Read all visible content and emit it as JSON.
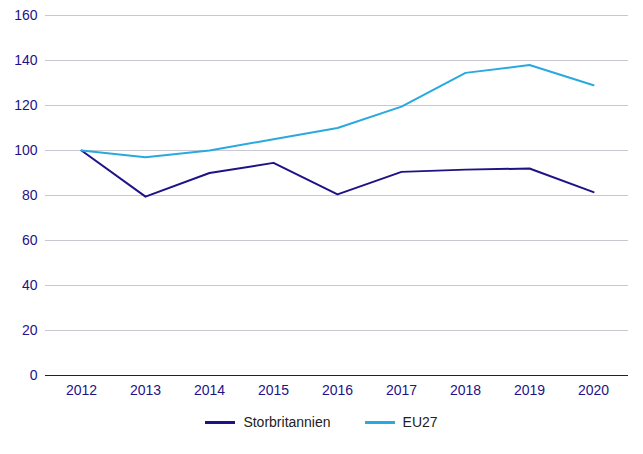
{
  "chart_data": {
    "type": "line",
    "categories": [
      "2012",
      "2013",
      "2014",
      "2015",
      "2016",
      "2017",
      "2018",
      "2019",
      "2020"
    ],
    "series": [
      {
        "name": "Storbritannien",
        "color": "#1e1287",
        "values": [
          100,
          79.5,
          90,
          94.5,
          80.5,
          90.5,
          91.5,
          92,
          81.5
        ]
      },
      {
        "name": "EU27",
        "color": "#2aa9de",
        "values": [
          100,
          97,
          100,
          105,
          110,
          119.5,
          134.5,
          138,
          129
        ]
      }
    ],
    "ylim": [
      0,
      160
    ],
    "yticks": [
      0,
      20,
      40,
      60,
      80,
      100,
      120,
      140,
      160
    ],
    "grid": true,
    "legend": "bottom"
  }
}
